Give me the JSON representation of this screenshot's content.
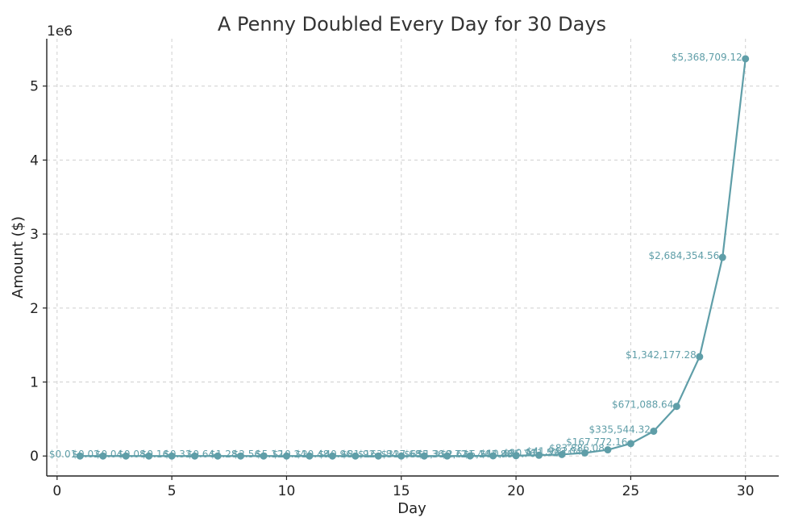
{
  "chart_data": {
    "type": "line",
    "title": "A Penny Doubled Every Day for 30 Days",
    "xlabel": "Day",
    "ylabel": "Amount ($)",
    "y_offset_label": "1e6",
    "xlim": [
      -0.45,
      31.45
    ],
    "ylim": [
      -270000,
      5640000
    ],
    "grid": true,
    "line_color": "#5f9ea8",
    "label_color": "#5f9ea8",
    "x_ticks": [
      0,
      5,
      10,
      15,
      20,
      25,
      30
    ],
    "x_tick_labels": [
      "0",
      "5",
      "10",
      "15",
      "20",
      "25",
      "30"
    ],
    "y_ticks": [
      0,
      1000000,
      2000000,
      3000000,
      4000000,
      5000000
    ],
    "y_tick_labels": [
      "0",
      "1",
      "2",
      "3",
      "4",
      "5"
    ],
    "series": [
      {
        "x": [
          1,
          2,
          3,
          4,
          5,
          6,
          7,
          8,
          9,
          10,
          11,
          12,
          13,
          14,
          15,
          16,
          17,
          18,
          19,
          20,
          21,
          22,
          23,
          24,
          25,
          26,
          27,
          28,
          29,
          30
        ],
        "values": [
          0.01,
          0.02,
          0.04,
          0.08,
          0.16,
          0.32,
          0.64,
          1.28,
          2.56,
          5.12,
          10.24,
          20.48,
          40.96,
          81.92,
          163.84,
          327.68,
          655.36,
          1310.72,
          2621.44,
          5242.88,
          10485.76,
          20971.52,
          41943.04,
          83886.08,
          167772.16,
          335544.32,
          671088.64,
          1342177.28,
          2684354.56,
          5368709.12
        ],
        "labels": [
          "$0.01",
          "$0.02",
          "$0.04",
          "$0.08",
          "$0.16",
          "$0.32",
          "$0.64",
          "$1.28",
          "$2.56",
          "$5.12",
          "$10.24",
          "$20.48",
          "$40.96",
          "$81.92",
          "$163.84",
          "$327.68",
          "$655.36",
          "$1,310.72",
          "$2,621.44",
          "$5,242.88",
          "$10,485.76",
          "$20,971.52",
          "$41,943.04",
          "$83,886.08",
          "$167,772.16",
          "$335,544.32",
          "$671,088.64",
          "$1,342,177.28",
          "$2,684,354.56",
          "$5,368,709.12"
        ]
      }
    ]
  }
}
